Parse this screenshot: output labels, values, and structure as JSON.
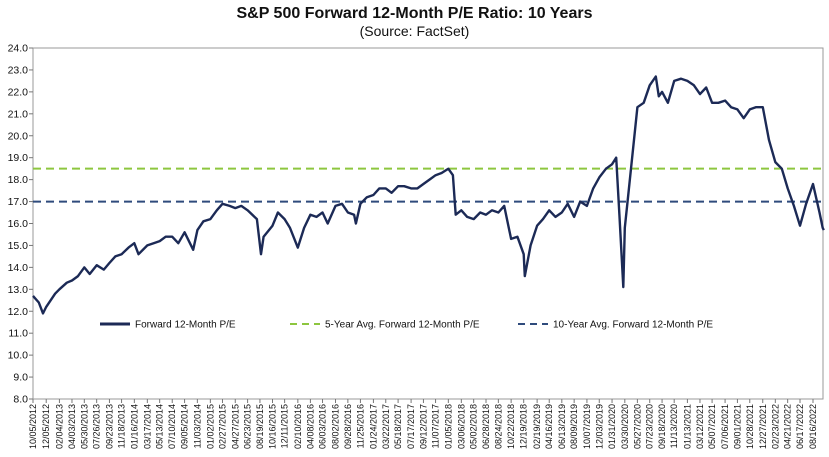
{
  "chart_data": {
    "type": "line",
    "title": "S&P 500 Forward 12-Month P/E Ratio: 10 Years",
    "subtitle": "(Source: FactSet)",
    "xlabel": "",
    "ylabel": "",
    "ylim": [
      8.0,
      24.0
    ],
    "yticks": [
      "24.0",
      "23.0",
      "22.0",
      "21.0",
      "20.0",
      "19.0",
      "18.0",
      "17.0",
      "16.0",
      "15.0",
      "14.0",
      "13.0",
      "12.0",
      "11.0",
      "10.0",
      "9.0",
      "8.0"
    ],
    "xticks": [
      "10/05/2012",
      "12/05/2012",
      "02/04/2013",
      "04/03/2013",
      "05/30/2013",
      "07/26/2013",
      "09/23/2013",
      "11/18/2013",
      "01/16/2014",
      "03/17/2014",
      "05/13/2014",
      "07/10/2014",
      "09/05/2014",
      "11/03/2014",
      "01/02/2015",
      "02/27/2015",
      "04/27/2015",
      "06/23/2015",
      "08/19/2015",
      "10/16/2015",
      "12/11/2015",
      "02/10/2016",
      "04/08/2016",
      "06/03/2016",
      "08/02/2016",
      "09/28/2016",
      "11/25/2016",
      "01/24/2017",
      "03/22/2017",
      "05/18/2017",
      "07/17/2017",
      "09/12/2017",
      "11/07/2017",
      "01/05/2018",
      "03/06/2018",
      "05/02/2018",
      "06/28/2018",
      "08/24/2018",
      "10/22/2018",
      "12/19/2018",
      "02/19/2019",
      "04/16/2019",
      "06/13/2019",
      "08/09/2019",
      "10/07/2019",
      "12/03/2019",
      "01/31/2020",
      "03/30/2020",
      "05/27/2020",
      "07/23/2020",
      "09/18/2020",
      "11/13/2020",
      "01/13/2021",
      "03/12/2021",
      "05/07/2021",
      "07/06/2021",
      "09/01/2021",
      "10/28/2021",
      "12/27/2021",
      "02/23/2022",
      "04/21/2022",
      "06/17/2022",
      "08/16/2022"
    ],
    "legend": {
      "placement": "inside-bottom",
      "entries": [
        {
          "name": "Forward 12-Month P/E",
          "style": "solid",
          "color": "#1c2a56"
        },
        {
          "name": "5-Year Avg. Forward 12-Month P/E",
          "style": "dashed",
          "color": "#8dc63f"
        },
        {
          "name": "10-Year Avg. Forward 12-Month P/E",
          "style": "dashed",
          "color": "#2f4b7c"
        }
      ]
    },
    "reference_lines": [
      {
        "name": "5-Year Avg. Forward 12-Month P/E",
        "value": 18.5,
        "color": "#8dc63f"
      },
      {
        "name": "10-Year Avg. Forward 12-Month P/E",
        "value": 17.0,
        "color": "#2f4b7c"
      }
    ],
    "series": [
      {
        "name": "Forward 12-Month P/E",
        "color": "#1c2a56",
        "x": [
          "10/05/2012",
          "11/01/2012",
          "11/20/2012",
          "12/05/2012",
          "01/15/2013",
          "02/04/2013",
          "03/10/2013",
          "04/03/2013",
          "05/01/2013",
          "05/30/2013",
          "06/24/2013",
          "07/26/2013",
          "08/28/2013",
          "09/23/2013",
          "10/20/2013",
          "11/18/2013",
          "12/20/2013",
          "01/16/2014",
          "02/04/2014",
          "03/17/2014",
          "04/15/2014",
          "05/13/2014",
          "06/10/2014",
          "07/10/2014",
          "08/07/2014",
          "09/05/2014",
          "10/15/2014",
          "11/03/2014",
          "12/01/2014",
          "01/02/2015",
          "02/01/2015",
          "02/27/2015",
          "04/01/2015",
          "04/27/2015",
          "05/25/2015",
          "06/23/2015",
          "08/05/2015",
          "08/24/2015",
          "09/05/2015",
          "10/16/2015",
          "11/10/2015",
          "12/11/2015",
          "01/05/2016",
          "02/10/2016",
          "03/10/2016",
          "04/08/2016",
          "05/06/2016",
          "06/03/2016",
          "06/27/2016",
          "08/02/2016",
          "09/01/2016",
          "09/28/2016",
          "10/27/2016",
          "11/04/2016",
          "11/25/2016",
          "12/25/2016",
          "01/24/2017",
          "02/20/2017",
          "03/22/2017",
          "04/18/2017",
          "05/18/2017",
          "06/15/2017",
          "07/17/2017",
          "08/15/2017",
          "09/12/2017",
          "10/10/2017",
          "11/07/2017",
          "12/05/2017",
          "01/05/2018",
          "01/26/2018",
          "02/08/2018",
          "03/06/2018",
          "04/02/2018",
          "05/02/2018",
          "06/01/2018",
          "06/28/2018",
          "07/25/2018",
          "08/24/2018",
          "09/20/2018",
          "10/22/2018",
          "11/20/2018",
          "12/19/2018",
          "12/24/2018",
          "01/20/2019",
          "02/19/2019",
          "03/18/2019",
          "04/16/2019",
          "05/15/2019",
          "06/13/2019",
          "07/10/2019",
          "08/09/2019",
          "09/06/2019",
          "10/07/2019",
          "11/05/2019",
          "12/03/2019",
          "01/03/2020",
          "01/31/2020",
          "02/19/2020",
          "03/05/2020",
          "03/23/2020",
          "03/30/2020",
          "04/20/2020",
          "05/27/2020",
          "06/25/2020",
          "07/23/2020",
          "08/20/2020",
          "09/03/2020",
          "09/18/2020",
          "10/15/2020",
          "11/13/2020",
          "12/15/2020",
          "01/13/2021",
          "02/12/2021",
          "03/12/2021",
          "04/10/2021",
          "05/07/2021",
          "06/05/2021",
          "07/06/2021",
          "08/03/2021",
          "09/01/2021",
          "09/30/2021",
          "10/28/2021",
          "11/25/2021",
          "12/27/2021",
          "01/25/2022",
          "02/23/2022",
          "03/25/2022",
          "04/21/2022",
          "05/20/2022",
          "06/17/2022",
          "07/15/2022",
          "08/16/2022",
          "09/15/2022",
          "09/30/2022",
          "10/05/2022"
        ],
        "values": [
          12.7,
          12.4,
          11.9,
          12.2,
          12.8,
          13.0,
          13.3,
          13.4,
          13.6,
          14.0,
          13.7,
          14.1,
          13.9,
          14.2,
          14.5,
          14.6,
          14.9,
          15.1,
          14.6,
          15.0,
          15.1,
          15.2,
          15.4,
          15.4,
          15.1,
          15.6,
          14.8,
          15.7,
          16.1,
          16.2,
          16.6,
          16.9,
          16.8,
          16.7,
          16.8,
          16.6,
          16.2,
          14.6,
          15.4,
          15.9,
          16.5,
          16.2,
          15.8,
          14.9,
          15.8,
          16.4,
          16.3,
          16.5,
          16.0,
          16.8,
          16.9,
          16.5,
          16.4,
          16.0,
          16.9,
          17.2,
          17.3,
          17.6,
          17.6,
          17.4,
          17.7,
          17.7,
          17.6,
          17.6,
          17.8,
          18.0,
          18.2,
          18.3,
          18.5,
          18.2,
          16.4,
          16.6,
          16.3,
          16.2,
          16.5,
          16.4,
          16.6,
          16.5,
          16.8,
          15.3,
          15.4,
          14.6,
          13.6,
          15.0,
          15.9,
          16.2,
          16.6,
          16.3,
          16.5,
          16.9,
          16.3,
          17.0,
          16.8,
          17.6,
          18.1,
          18.5,
          18.7,
          19.0,
          16.4,
          13.1,
          15.8,
          17.8,
          21.3,
          21.5,
          22.3,
          22.7,
          21.8,
          22.0,
          21.5,
          22.5,
          22.6,
          22.5,
          22.3,
          21.9,
          22.2,
          21.5,
          21.5,
          21.6,
          21.3,
          21.2,
          20.8,
          21.2,
          21.3,
          21.3,
          19.8,
          18.8,
          18.5,
          17.6,
          16.8,
          15.9,
          16.9,
          17.8,
          16.5,
          15.8,
          15.7
        ]
      }
    ]
  }
}
